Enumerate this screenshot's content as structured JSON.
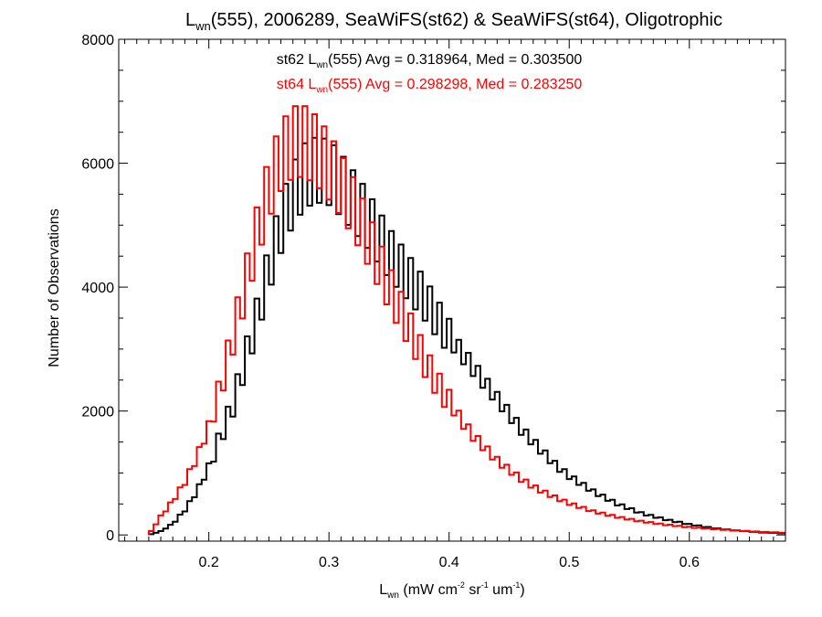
{
  "chart_data": {
    "type": "line",
    "title": {
      "lead": "L",
      "sub": "wn",
      "rest": "(555), 2006289, SeaWiFS(st62) & SeaWiFS(st64), Oligotrophic"
    },
    "xlabel": {
      "lead": "L",
      "sub": "wn",
      "unit_a": " (mW cm",
      "sup_a": "-2",
      "unit_b": " sr",
      "sup_b": "-1",
      "unit_c": " um",
      "sup_c": "-1",
      "close": ")"
    },
    "ylabel": "Number of Observations",
    "xlim": [
      0.125,
      0.68
    ],
    "ylim": [
      -100,
      8000
    ],
    "xticks": [
      0.2,
      0.3,
      0.4,
      0.5,
      0.6
    ],
    "xtick_labels": [
      "0.2",
      "0.3",
      "0.4",
      "0.5",
      "0.6"
    ],
    "yticks": [
      0,
      2000,
      4000,
      6000,
      8000
    ],
    "ytick_labels": [
      "0",
      "2000",
      "4000",
      "6000",
      "8000"
    ],
    "bin_width": 0.004,
    "grid": false,
    "legend_position": "top-center",
    "series": [
      {
        "label_prefix": "st62 L",
        "label_sub": "wn",
        "label_rest": "(555) Avg = 0.318964, Med = 0.303500",
        "color": "#000000",
        "points": [
          [
            0.15,
            0
          ],
          [
            0.16,
            60
          ],
          [
            0.17,
            180
          ],
          [
            0.18,
            400
          ],
          [
            0.19,
            700
          ],
          [
            0.2,
            1100
          ],
          [
            0.21,
            1600
          ],
          [
            0.22,
            2100
          ],
          [
            0.23,
            2800
          ],
          [
            0.24,
            3500
          ],
          [
            0.25,
            4300
          ],
          [
            0.26,
            5000
          ],
          [
            0.27,
            5500
          ],
          [
            0.28,
            5800
          ],
          [
            0.29,
            5900
          ],
          [
            0.3,
            5850
          ],
          [
            0.31,
            5650
          ],
          [
            0.32,
            5400
          ],
          [
            0.33,
            5150
          ],
          [
            0.34,
            4850
          ],
          [
            0.35,
            4550
          ],
          [
            0.36,
            4300
          ],
          [
            0.37,
            4050
          ],
          [
            0.38,
            3800
          ],
          [
            0.39,
            3500
          ],
          [
            0.4,
            3200
          ],
          [
            0.41,
            2950
          ],
          [
            0.42,
            2700
          ],
          [
            0.43,
            2450
          ],
          [
            0.44,
            2200
          ],
          [
            0.45,
            1950
          ],
          [
            0.46,
            1700
          ],
          [
            0.47,
            1500
          ],
          [
            0.48,
            1300
          ],
          [
            0.49,
            1100
          ],
          [
            0.5,
            950
          ],
          [
            0.52,
            700
          ],
          [
            0.54,
            500
          ],
          [
            0.56,
            350
          ],
          [
            0.58,
            250
          ],
          [
            0.6,
            170
          ],
          [
            0.62,
            110
          ],
          [
            0.64,
            70
          ],
          [
            0.66,
            40
          ],
          [
            0.68,
            25
          ]
        ]
      },
      {
        "label_prefix": "st64 L",
        "label_sub": "wn",
        "label_rest": "(555) Avg = 0.298298, Med = 0.283250",
        "color": "#ff0000",
        "points": [
          [
            0.15,
            0
          ],
          [
            0.16,
            300
          ],
          [
            0.17,
            550
          ],
          [
            0.18,
            850
          ],
          [
            0.19,
            1250
          ],
          [
            0.2,
            1750
          ],
          [
            0.21,
            2400
          ],
          [
            0.22,
            3200
          ],
          [
            0.23,
            4000
          ],
          [
            0.24,
            4850
          ],
          [
            0.25,
            5600
          ],
          [
            0.26,
            6100
          ],
          [
            0.27,
            6350
          ],
          [
            0.28,
            6350
          ],
          [
            0.29,
            6200
          ],
          [
            0.3,
            5950
          ],
          [
            0.31,
            5650
          ],
          [
            0.32,
            5300
          ],
          [
            0.33,
            4900
          ],
          [
            0.34,
            4450
          ],
          [
            0.35,
            4000
          ],
          [
            0.36,
            3600
          ],
          [
            0.37,
            3200
          ],
          [
            0.38,
            2800
          ],
          [
            0.39,
            2450
          ],
          [
            0.4,
            2150
          ],
          [
            0.41,
            1850
          ],
          [
            0.42,
            1600
          ],
          [
            0.43,
            1400
          ],
          [
            0.44,
            1200
          ],
          [
            0.45,
            1050
          ],
          [
            0.46,
            900
          ],
          [
            0.47,
            780
          ],
          [
            0.48,
            680
          ],
          [
            0.49,
            590
          ],
          [
            0.5,
            510
          ],
          [
            0.52,
            380
          ],
          [
            0.54,
            290
          ],
          [
            0.56,
            220
          ],
          [
            0.58,
            165
          ],
          [
            0.6,
            125
          ],
          [
            0.62,
            95
          ],
          [
            0.64,
            70
          ],
          [
            0.66,
            50
          ],
          [
            0.68,
            35
          ]
        ]
      }
    ]
  }
}
